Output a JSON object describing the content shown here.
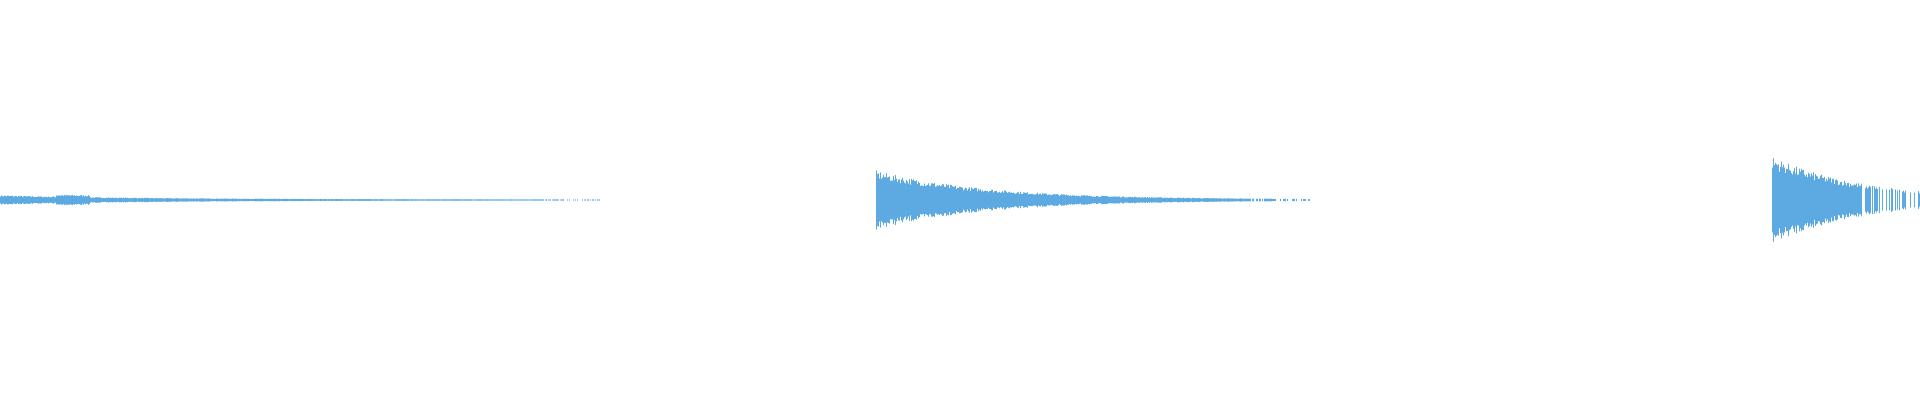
{
  "waveform": {
    "color": "#5DAAE2",
    "background": "#FFFFFF",
    "channels": 1
  }
}
